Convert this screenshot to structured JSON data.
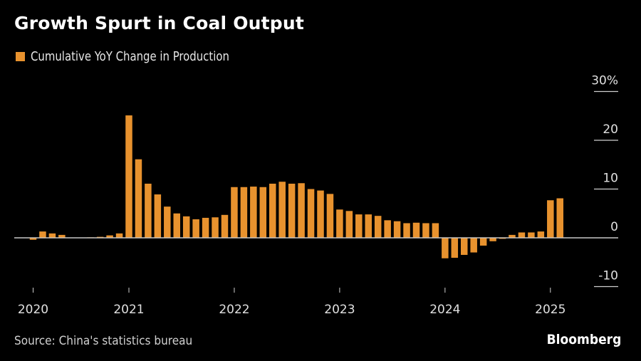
{
  "chart_data": {
    "type": "bar",
    "title": "Growth Spurt in Coal Output",
    "legend": [
      {
        "name": "Cumulative YoY Change in Production",
        "color": "#E8922E"
      }
    ],
    "legend_position": "top-left",
    "xlabel": "",
    "ylabel": "",
    "ylim": [
      -10,
      30
    ],
    "y_ticks": [
      30,
      20,
      10,
      0,
      -10
    ],
    "y_tick_labels": [
      "30%",
      "20",
      "10",
      "0",
      "-10"
    ],
    "y_axis_side": "right",
    "x_tick_labels": [
      "2020",
      "2021",
      "2022",
      "2023",
      "2024",
      "2025"
    ],
    "grid": false,
    "series": [
      {
        "name": "Cumulative YoY Change in Production",
        "color": "#E8922E",
        "groups": [
          {
            "year": "2020",
            "values": [
              -0.4,
              1.3,
              0.9,
              0.6,
              0.05,
              0.05,
              0.1,
              0.2,
              0.5,
              0.9
            ]
          },
          {
            "year": "2021",
            "values": [
              25.1,
              16.1,
              11.1,
              8.9,
              6.4,
              5.0,
              4.4,
              3.8,
              4.1,
              4.2,
              4.7
            ]
          },
          {
            "year": "2022",
            "values": [
              10.4,
              10.4,
              10.5,
              10.4,
              11.1,
              11.5,
              11.1,
              11.2,
              10.0,
              9.7,
              9.0
            ]
          },
          {
            "year": "2023",
            "values": [
              5.8,
              5.5,
              4.8,
              4.8,
              4.5,
              3.6,
              3.4,
              3.0,
              3.1,
              3.0,
              3.0
            ]
          },
          {
            "year": "2024",
            "values": [
              -4.2,
              -4.1,
              -3.5,
              -3.0,
              -1.6,
              -0.7,
              -0.2,
              0.6,
              1.1,
              1.1,
              1.3
            ]
          },
          {
            "year": "2025",
            "values": [
              7.7,
              8.1
            ]
          }
        ]
      }
    ]
  },
  "footer": {
    "source": "Source: China's statistics bureau",
    "brand": "Bloomberg"
  }
}
